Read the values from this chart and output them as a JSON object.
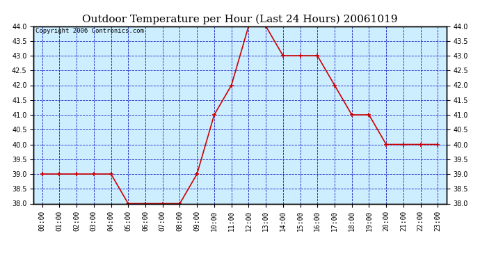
{
  "title": "Outdoor Temperature per Hour (Last 24 Hours) 20061019",
  "copyright_text": "Copyright 2006 Contronics.com",
  "hours": [
    "00:00",
    "01:00",
    "02:00",
    "03:00",
    "04:00",
    "05:00",
    "06:00",
    "07:00",
    "08:00",
    "09:00",
    "10:00",
    "11:00",
    "12:00",
    "13:00",
    "14:00",
    "15:00",
    "16:00",
    "17:00",
    "18:00",
    "19:00",
    "20:00",
    "21:00",
    "22:00",
    "23:00"
  ],
  "temps": [
    39.0,
    39.0,
    39.0,
    39.0,
    39.0,
    38.0,
    38.0,
    38.0,
    38.0,
    39.0,
    41.0,
    42.0,
    44.0,
    44.0,
    43.0,
    43.0,
    43.0,
    42.0,
    41.0,
    41.0,
    40.0,
    40.0,
    40.0,
    40.0
  ],
  "ylim": [
    38.0,
    44.0
  ],
  "line_color": "#cc0000",
  "marker_color": "#cc0000",
  "bg_color": "#cceeff",
  "grid_color": "#0000bb",
  "border_color": "#000000",
  "title_fontsize": 11,
  "tick_fontsize": 7,
  "copyright_fontsize": 6.5
}
